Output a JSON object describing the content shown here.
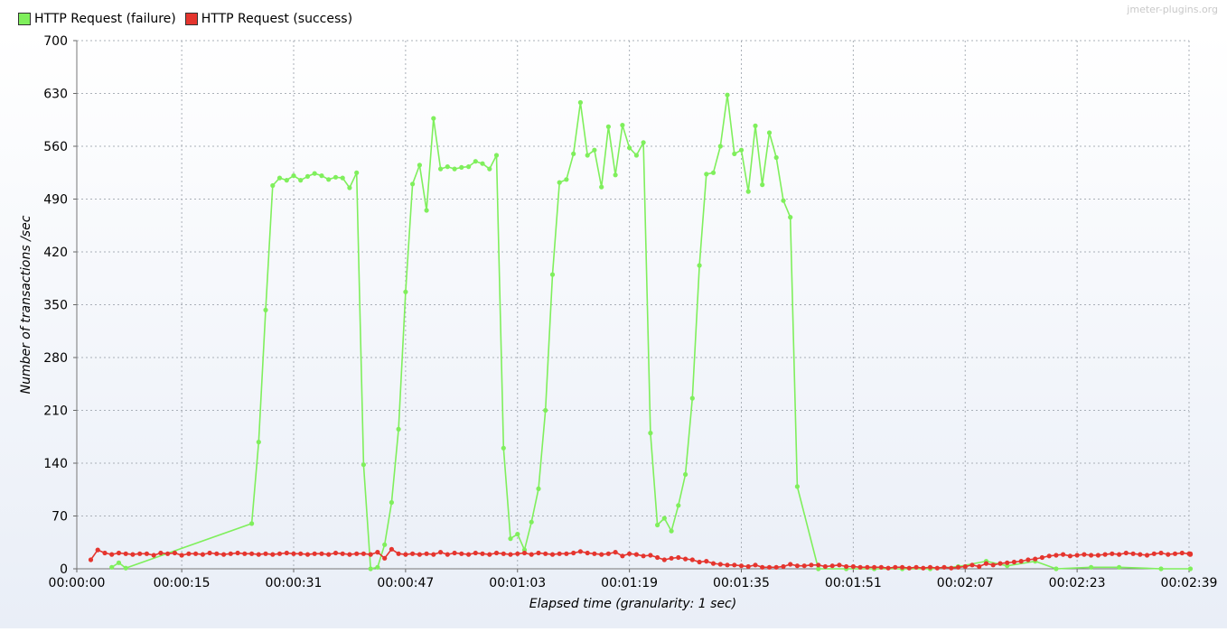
{
  "watermark": "jmeter-plugins.org",
  "chart_data": {
    "type": "line",
    "title": "",
    "xlabel": "Elapsed time (granularity: 1 sec)",
    "ylabel": "Number of transactions /sec",
    "ylim": [
      0,
      700
    ],
    "yticks": [
      0,
      70,
      140,
      210,
      280,
      350,
      420,
      490,
      560,
      630,
      700
    ],
    "xlim": [
      0,
      159
    ],
    "xticks": [
      {
        "value": 0,
        "label": "00:00:00"
      },
      {
        "value": 15,
        "label": "00:00:15"
      },
      {
        "value": 31,
        "label": "00:00:31"
      },
      {
        "value": 47,
        "label": "00:00:47"
      },
      {
        "value": 63,
        "label": "00:01:03"
      },
      {
        "value": 79,
        "label": "00:01:19"
      },
      {
        "value": 95,
        "label": "00:01:35"
      },
      {
        "value": 111,
        "label": "00:01:51"
      },
      {
        "value": 127,
        "label": "00:02:07"
      },
      {
        "value": 143,
        "label": "00:02:23"
      },
      {
        "value": 159,
        "label": "00:02:39"
      }
    ],
    "grid": true,
    "legend_position": "top-left",
    "series": [
      {
        "name": "HTTP Request (failure)",
        "color": "#7fef5c",
        "points": [
          [
            5,
            2
          ],
          [
            6,
            8
          ],
          [
            7,
            1
          ],
          [
            25,
            60
          ],
          [
            26,
            168
          ],
          [
            27,
            343
          ],
          [
            28,
            508
          ],
          [
            29,
            518
          ],
          [
            30,
            515
          ],
          [
            31,
            521
          ],
          [
            32,
            515
          ],
          [
            33,
            520
          ],
          [
            34,
            524
          ],
          [
            35,
            521
          ],
          [
            36,
            516
          ],
          [
            37,
            519
          ],
          [
            38,
            518
          ],
          [
            39,
            505
          ],
          [
            40,
            525
          ],
          [
            41,
            138
          ],
          [
            42,
            0
          ],
          [
            43,
            2
          ],
          [
            44,
            32
          ],
          [
            45,
            88
          ],
          [
            46,
            185
          ],
          [
            47,
            367
          ],
          [
            48,
            510
          ],
          [
            49,
            535
          ],
          [
            50,
            475
          ],
          [
            51,
            597
          ],
          [
            52,
            530
          ],
          [
            53,
            533
          ],
          [
            54,
            530
          ],
          [
            55,
            532
          ],
          [
            56,
            533
          ],
          [
            57,
            540
          ],
          [
            58,
            537
          ],
          [
            59,
            530
          ],
          [
            60,
            548
          ],
          [
            61,
            160
          ],
          [
            62,
            40
          ],
          [
            63,
            46
          ],
          [
            64,
            25
          ],
          [
            65,
            62
          ],
          [
            66,
            106
          ],
          [
            67,
            210
          ],
          [
            68,
            390
          ],
          [
            69,
            512
          ],
          [
            70,
            516
          ],
          [
            71,
            550
          ],
          [
            72,
            618
          ],
          [
            73,
            548
          ],
          [
            74,
            555
          ],
          [
            75,
            506
          ],
          [
            76,
            586
          ],
          [
            77,
            522
          ],
          [
            78,
            588
          ],
          [
            79,
            558
          ],
          [
            80,
            548
          ],
          [
            81,
            565
          ],
          [
            82,
            180
          ],
          [
            83,
            58
          ],
          [
            84,
            67
          ],
          [
            85,
            50
          ],
          [
            86,
            84
          ],
          [
            87,
            125
          ],
          [
            88,
            226
          ],
          [
            89,
            402
          ],
          [
            90,
            523
          ],
          [
            91,
            525
          ],
          [
            92,
            560
          ],
          [
            93,
            628
          ],
          [
            94,
            550
          ],
          [
            95,
            555
          ],
          [
            96,
            500
          ],
          [
            97,
            587
          ],
          [
            98,
            509
          ],
          [
            99,
            578
          ],
          [
            100,
            545
          ],
          [
            101,
            488
          ],
          [
            102,
            466
          ],
          [
            103,
            109
          ],
          [
            106,
            0
          ],
          [
            110,
            0
          ],
          [
            114,
            0
          ],
          [
            118,
            0
          ],
          [
            122,
            0
          ],
          [
            126,
            3
          ],
          [
            130,
            10
          ],
          [
            133,
            4
          ],
          [
            137,
            10
          ],
          [
            140,
            0
          ],
          [
            145,
            2
          ],
          [
            149,
            2
          ],
          [
            155,
            0
          ],
          [
            161,
            0
          ]
        ]
      },
      {
        "name": "HTTP Request (success)",
        "color": "#e5352e",
        "points": [
          [
            2,
            12
          ],
          [
            3,
            25
          ],
          [
            4,
            21
          ],
          [
            5,
            19
          ],
          [
            6,
            21
          ],
          [
            7,
            20
          ],
          [
            8,
            19
          ],
          [
            9,
            20
          ],
          [
            10,
            20
          ],
          [
            11,
            18
          ],
          [
            12,
            21
          ],
          [
            13,
            20
          ],
          [
            14,
            21
          ],
          [
            15,
            18
          ],
          [
            16,
            20
          ],
          [
            17,
            20
          ],
          [
            18,
            19
          ],
          [
            19,
            21
          ],
          [
            20,
            20
          ],
          [
            21,
            19
          ],
          [
            22,
            20
          ],
          [
            23,
            21
          ],
          [
            24,
            20
          ],
          [
            25,
            20
          ],
          [
            26,
            19
          ],
          [
            27,
            20
          ],
          [
            28,
            19
          ],
          [
            29,
            20
          ],
          [
            30,
            21
          ],
          [
            31,
            20
          ],
          [
            32,
            20
          ],
          [
            33,
            19
          ],
          [
            34,
            20
          ],
          [
            35,
            20
          ],
          [
            36,
            19
          ],
          [
            37,
            21
          ],
          [
            38,
            20
          ],
          [
            39,
            19
          ],
          [
            40,
            20
          ],
          [
            41,
            20
          ],
          [
            42,
            19
          ],
          [
            43,
            22
          ],
          [
            44,
            14
          ],
          [
            45,
            26
          ],
          [
            46,
            20
          ],
          [
            47,
            19
          ],
          [
            48,
            20
          ],
          [
            49,
            19
          ],
          [
            50,
            20
          ],
          [
            51,
            19
          ],
          [
            52,
            22
          ],
          [
            53,
            19
          ],
          [
            54,
            21
          ],
          [
            55,
            20
          ],
          [
            56,
            19
          ],
          [
            57,
            21
          ],
          [
            58,
            20
          ],
          [
            59,
            19
          ],
          [
            60,
            21
          ],
          [
            61,
            20
          ],
          [
            62,
            19
          ],
          [
            63,
            20
          ],
          [
            64,
            21
          ],
          [
            65,
            19
          ],
          [
            66,
            21
          ],
          [
            67,
            20
          ],
          [
            68,
            19
          ],
          [
            69,
            20
          ],
          [
            70,
            20
          ],
          [
            71,
            21
          ],
          [
            72,
            23
          ],
          [
            73,
            21
          ],
          [
            74,
            20
          ],
          [
            75,
            19
          ],
          [
            76,
            20
          ],
          [
            77,
            22
          ],
          [
            78,
            17
          ],
          [
            79,
            20
          ],
          [
            80,
            19
          ],
          [
            81,
            17
          ],
          [
            82,
            18
          ],
          [
            83,
            15
          ],
          [
            84,
            12
          ],
          [
            85,
            14
          ],
          [
            86,
            15
          ],
          [
            87,
            13
          ],
          [
            88,
            12
          ],
          [
            89,
            9
          ],
          [
            90,
            10
          ],
          [
            91,
            7
          ],
          [
            92,
            6
          ],
          [
            93,
            5
          ],
          [
            94,
            5
          ],
          [
            95,
            4
          ],
          [
            96,
            3
          ],
          [
            97,
            5
          ],
          [
            98,
            2
          ],
          [
            99,
            2
          ],
          [
            100,
            2
          ],
          [
            101,
            3
          ],
          [
            102,
            6
          ],
          [
            103,
            4
          ],
          [
            104,
            4
          ],
          [
            105,
            5
          ],
          [
            106,
            5
          ],
          [
            107,
            3
          ],
          [
            108,
            4
          ],
          [
            109,
            5
          ],
          [
            110,
            3
          ],
          [
            111,
            3
          ],
          [
            112,
            2
          ],
          [
            113,
            2
          ],
          [
            114,
            2
          ],
          [
            115,
            2
          ],
          [
            116,
            1
          ],
          [
            117,
            2
          ],
          [
            118,
            2
          ],
          [
            119,
            1
          ],
          [
            120,
            2
          ],
          [
            121,
            1
          ],
          [
            122,
            2
          ],
          [
            123,
            1
          ],
          [
            124,
            2
          ],
          [
            125,
            1
          ],
          [
            126,
            2
          ],
          [
            127,
            3
          ],
          [
            128,
            5
          ],
          [
            129,
            3
          ],
          [
            130,
            7
          ],
          [
            131,
            5
          ],
          [
            132,
            7
          ],
          [
            133,
            8
          ],
          [
            134,
            9
          ],
          [
            135,
            10
          ],
          [
            136,
            12
          ],
          [
            137,
            13
          ],
          [
            138,
            15
          ],
          [
            139,
            17
          ],
          [
            140,
            18
          ],
          [
            141,
            19
          ],
          [
            142,
            17
          ],
          [
            143,
            18
          ],
          [
            144,
            19
          ],
          [
            145,
            18
          ],
          [
            146,
            18
          ],
          [
            147,
            19
          ],
          [
            148,
            20
          ],
          [
            149,
            19
          ],
          [
            150,
            21
          ],
          [
            151,
            20
          ],
          [
            152,
            19
          ],
          [
            153,
            18
          ],
          [
            154,
            20
          ],
          [
            155,
            21
          ],
          [
            156,
            19
          ],
          [
            157,
            20
          ],
          [
            158,
            21
          ],
          [
            159,
            20
          ],
          [
            160,
            19
          ],
          [
            161,
            20
          ]
        ]
      }
    ]
  }
}
